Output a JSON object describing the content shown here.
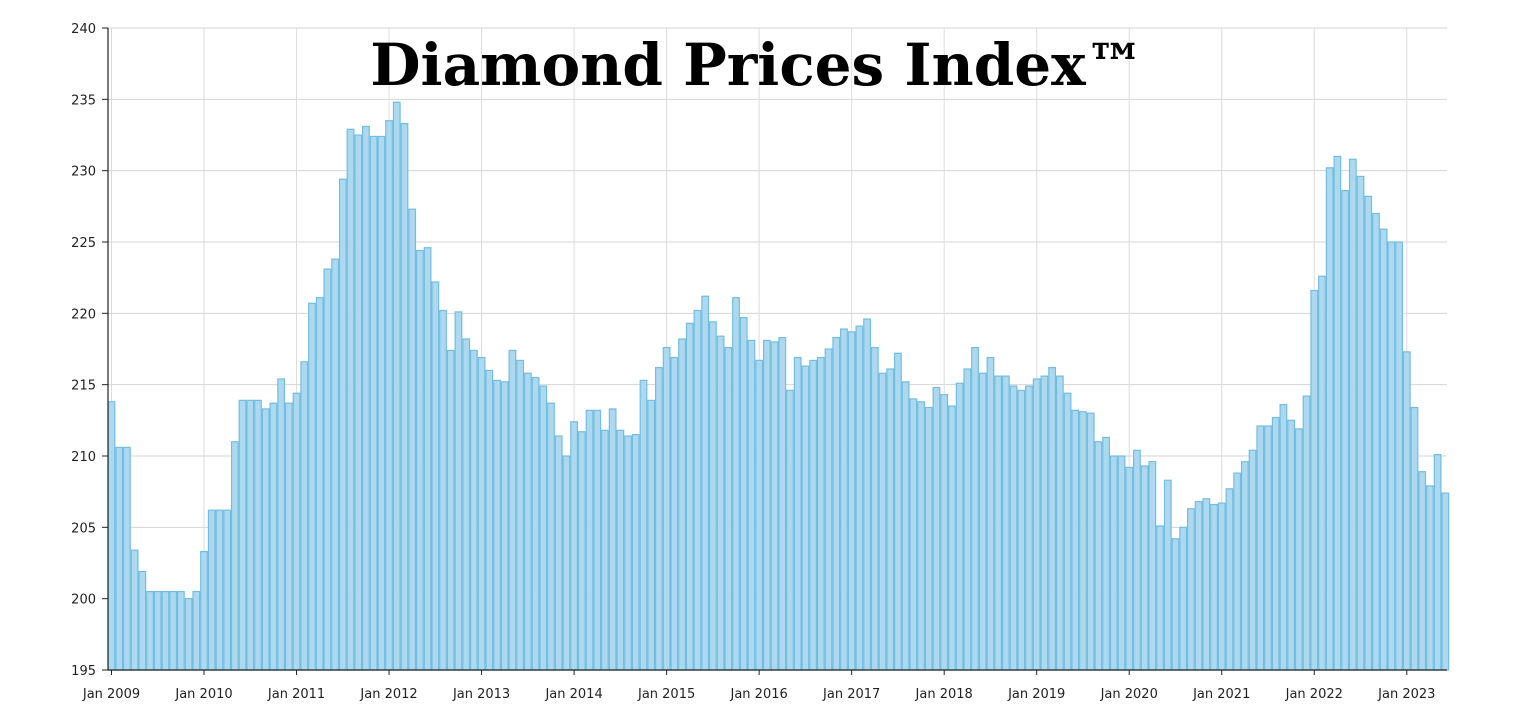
{
  "chart_data": {
    "type": "bar",
    "title": "Diamond Prices Index™",
    "xlabel": "",
    "ylabel": "",
    "ylim": [
      195,
      240
    ],
    "yticks": [
      195,
      200,
      205,
      210,
      215,
      220,
      225,
      230,
      235,
      240
    ],
    "xtick_labels": [
      "Jan 2009",
      "Jan 2010",
      "Jan 2011",
      "Jan 2012",
      "Jan 2013",
      "Jan 2014",
      "Jan 2015",
      "Jan 2016",
      "Jan 2017",
      "Jan 2018",
      "Jan 2019",
      "Jan 2020",
      "Jan 2021",
      "Jan 2022",
      "Jan 2023"
    ],
    "grid": true,
    "start_month": "Jan 2009",
    "frequency": "monthly",
    "bar_fill": "#acd9ef",
    "bar_stroke": "#74bde0",
    "values": [
      213.8,
      210.6,
      210.6,
      203.4,
      201.9,
      200.5,
      200.5,
      200.5,
      200.5,
      200.5,
      200.0,
      200.5,
      203.3,
      206.2,
      206.2,
      206.2,
      211.0,
      213.9,
      213.9,
      213.9,
      213.3,
      213.7,
      215.4,
      213.7,
      214.4,
      216.6,
      220.7,
      221.1,
      223.1,
      223.8,
      229.4,
      232.9,
      232.5,
      233.1,
      232.4,
      232.4,
      233.5,
      234.8,
      233.3,
      227.3,
      224.4,
      224.6,
      222.2,
      220.2,
      217.4,
      220.1,
      218.2,
      217.4,
      216.9,
      216.0,
      215.3,
      215.2,
      217.4,
      216.7,
      215.8,
      215.5,
      214.9,
      213.7,
      211.4,
      210.0,
      212.4,
      211.7,
      213.2,
      213.2,
      211.8,
      213.3,
      211.8,
      211.4,
      211.5,
      215.3,
      213.9,
      216.2,
      217.6,
      216.9,
      218.2,
      219.3,
      220.2,
      221.2,
      219.4,
      218.4,
      217.6,
      221.1,
      219.7,
      218.1,
      216.7,
      218.1,
      218.0,
      218.3,
      214.6,
      216.9,
      216.3,
      216.7,
      216.9,
      217.5,
      218.3,
      218.9,
      218.7,
      219.1,
      219.6,
      217.6,
      215.8,
      216.1,
      217.2,
      215.2,
      214.0,
      213.8,
      213.4,
      214.8,
      214.3,
      213.5,
      215.1,
      216.1,
      217.6,
      215.8,
      216.9,
      215.6,
      215.6,
      214.9,
      214.6,
      214.9,
      215.4,
      215.6,
      216.2,
      215.6,
      214.4,
      213.2,
      213.1,
      213.0,
      211.0,
      211.3,
      210.0,
      210.0,
      209.2,
      210.4,
      209.3,
      209.6,
      205.1,
      208.3,
      204.2,
      205.0,
      206.3,
      206.8,
      207.0,
      206.6,
      206.7,
      207.7,
      208.8,
      209.6,
      210.4,
      212.1,
      212.1,
      212.7,
      213.6,
      212.5,
      211.9,
      214.2,
      221.6,
      222.6,
      230.2,
      231.0,
      228.6,
      230.8,
      229.6,
      228.2,
      227.0,
      225.9,
      225.0,
      225.0,
      217.3,
      213.4,
      208.9,
      207.9,
      210.1,
      207.4
    ]
  }
}
